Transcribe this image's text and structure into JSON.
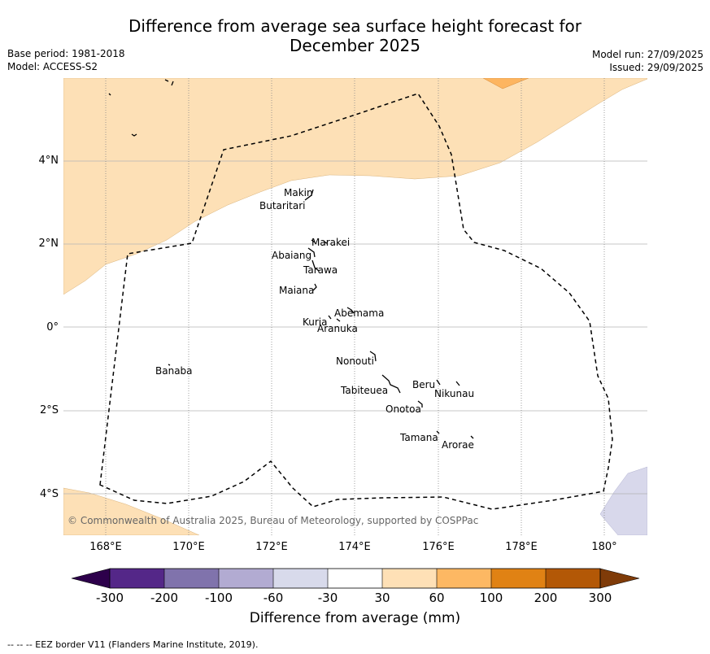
{
  "header": {
    "title_line1": "Difference from average sea surface height forecast for",
    "title_line2": "December 2025",
    "base_period": "Base period: 1981-2018",
    "model": "Model: ACCESS-S2",
    "model_run": "Model run: 27/09/2025",
    "issued": "Issued: 29/09/2025"
  },
  "map": {
    "lat_labels": [
      "4°N",
      "2°N",
      "0°",
      "2°S",
      "4°S"
    ],
    "lon_labels": [
      "168°E",
      "170°E",
      "172°E",
      "174°E",
      "176°E",
      "178°E",
      "180°"
    ],
    "islands": [
      "Makin",
      "Butaritari",
      "Marakei",
      "Abaiang",
      "Tarawa",
      "Maiana",
      "Abemama",
      "Kuria",
      "Aranuka",
      "Nonouti",
      "Banaba",
      "Beru",
      "Tabiteuea",
      "Nikunau",
      "Onotoa",
      "Tamana",
      "Arorae"
    ],
    "copyright": "© Commonwealth of Australia 2025, Bureau of Meteorology, supported by COSPPac",
    "colors": {
      "band_30_60": "#fde0b6",
      "band_60_100": "#fdb560",
      "band_neg30_neg60": "#d8d8eb",
      "eez_border": "#000000"
    }
  },
  "colorbar": {
    "ticks": [
      "-300",
      "-200",
      "-100",
      "-60",
      "-30",
      "30",
      "60",
      "100",
      "200",
      "300"
    ],
    "colors": [
      "#2d004b",
      "#542788",
      "#8073ac",
      "#b2abd2",
      "#d8daeb",
      "#ffffff",
      "#fee0b6",
      "#fdb863",
      "#e08214",
      "#b35806",
      "#7f3b08"
    ],
    "label": "Difference from average (mm)"
  },
  "footer": {
    "legend_text": "--  --  -- EEZ border V11 (Flanders Marine Institute, 2019)."
  }
}
